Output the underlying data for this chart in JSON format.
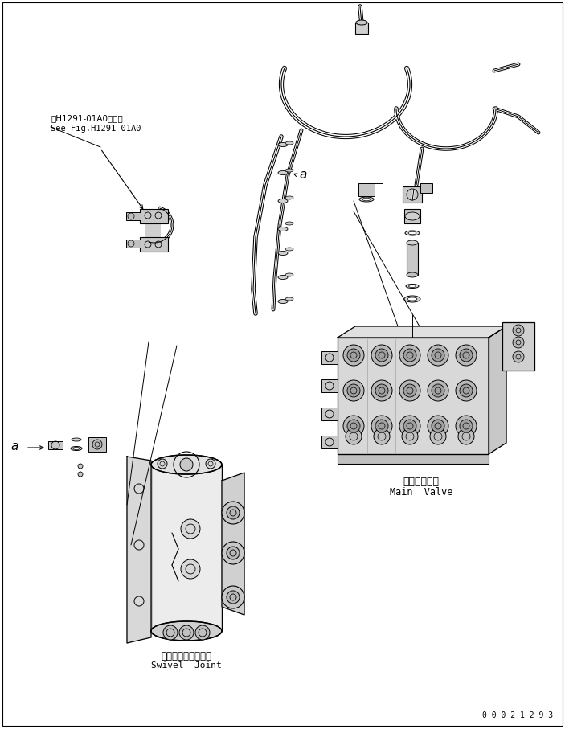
{
  "bg_color": "#ffffff",
  "line_color": "#000000",
  "fig_width": 7.03,
  "fig_height": 9.07,
  "dpi": 100,
  "doc_number": "0 0 0 2 1 2 9 3",
  "main_valve_jp": "メインバルブ",
  "main_valve_en": "Main  Valve",
  "swivel_joint_jp": "スイベルジョイント",
  "swivel_joint_en": "Swivel  Joint",
  "see_fig_jp": "第H1291-01A0図参照",
  "see_fig_en": "See Fig.H1291-01A0"
}
